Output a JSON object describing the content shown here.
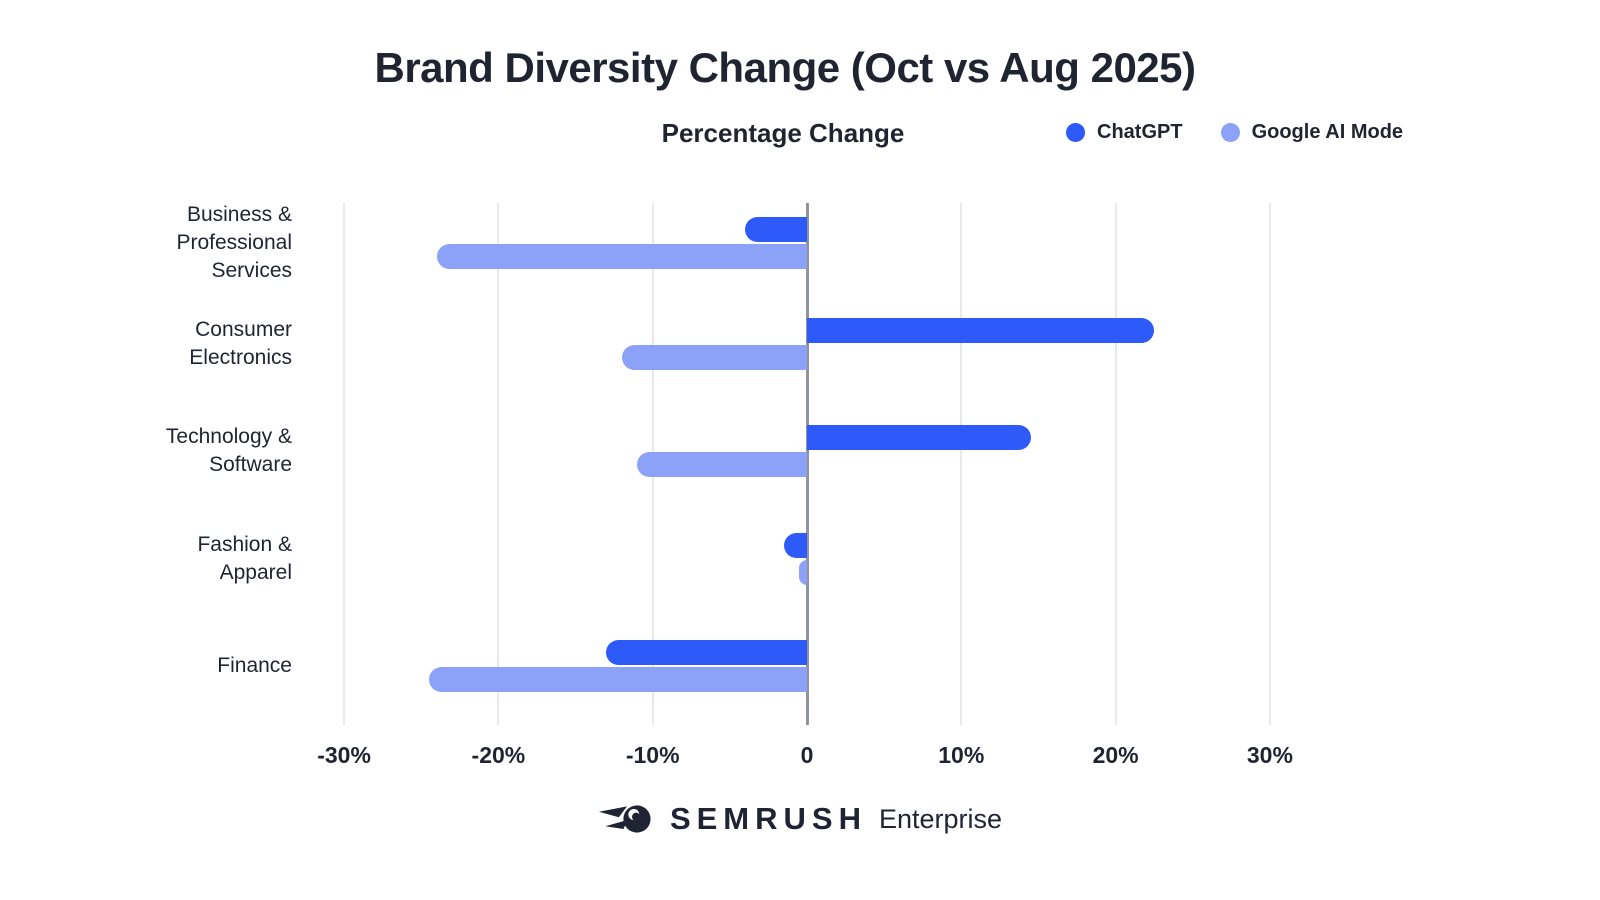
{
  "header": {
    "title": "Brand Diversity Change (Oct vs Aug 2025)",
    "subtitle": "Percentage Change"
  },
  "legend": {
    "items": [
      {
        "label": "ChatGPT",
        "color": "#2D5AF8"
      },
      {
        "label": "Google AI Mode",
        "color": "#8CA1F8"
      }
    ]
  },
  "footer": {
    "brand": "SEMRUSH",
    "product": "Enterprise",
    "logo": "semrush-comet-icon",
    "color": "#1E2433"
  },
  "colors": {
    "title_text": "#1F2430",
    "gridline": "#E8E9ED",
    "zero_line": "#90939D",
    "chatgpt_bar": "#2D5AF8",
    "google_ai_mode_bar": "#8CA1F8",
    "background": "#FFFFFF"
  },
  "chart_data": {
    "type": "bar",
    "orientation": "horizontal",
    "title": "Brand Diversity Change (Oct vs Aug 2025)",
    "xlabel": "Percentage Change",
    "categories": [
      "Business & Professional Services",
      "Consumer Electronics",
      "Technology & Software",
      "Fashion & Apparel",
      "Finance"
    ],
    "category_label_lines": [
      [
        "Business &",
        "Professional",
        "Services"
      ],
      [
        "Consumer",
        "Electronics"
      ],
      [
        "Technology &",
        "Software"
      ],
      [
        "Fashion &",
        "Apparel"
      ],
      [
        "Finance"
      ]
    ],
    "series": [
      {
        "name": "ChatGPT",
        "color": "#2D5AF8",
        "values": [
          -4,
          22.5,
          14.5,
          -1.5,
          -13
        ]
      },
      {
        "name": "Google AI Mode",
        "color": "#8CA1F8",
        "values": [
          -24,
          -12,
          -11,
          -0.5,
          -24.5
        ]
      }
    ],
    "x_ticks": [
      {
        "label": "-30%",
        "value": -30
      },
      {
        "label": "-20%",
        "value": -20
      },
      {
        "label": "-10%",
        "value": -10
      },
      {
        "label": "0",
        "value": 0
      },
      {
        "label": "10%",
        "value": 10
      },
      {
        "label": "20%",
        "value": 20
      },
      {
        "label": "30%",
        "value": 30
      }
    ],
    "xlim": [
      -32.5,
      37
    ],
    "grid": "vertical-only",
    "zero_line": true,
    "legend_position": "top-right"
  }
}
